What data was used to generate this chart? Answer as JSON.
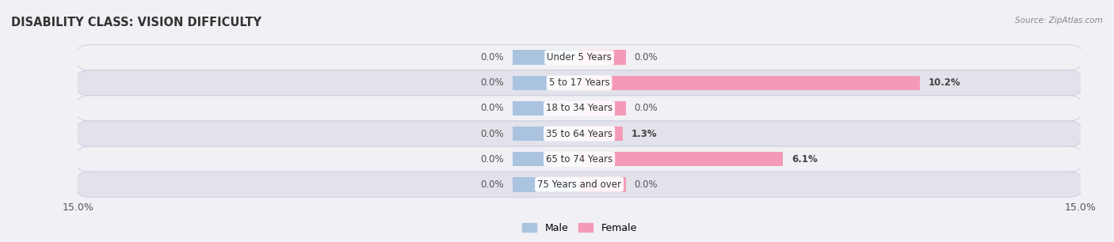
{
  "title": "DISABILITY CLASS: VISION DIFFICULTY",
  "source": "Source: ZipAtlas.com",
  "categories": [
    "Under 5 Years",
    "5 to 17 Years",
    "18 to 34 Years",
    "35 to 64 Years",
    "65 to 74 Years",
    "75 Years and over"
  ],
  "male_values": [
    0.0,
    0.0,
    0.0,
    0.0,
    0.0,
    0.0
  ],
  "female_values": [
    0.0,
    10.2,
    0.0,
    1.3,
    6.1,
    0.0
  ],
  "male_color": "#aac4e0",
  "female_color": "#f49ab8",
  "xlim": 15.0,
  "bar_height": 0.58,
  "stub_size": 2.0,
  "title_fontsize": 10.5,
  "label_fontsize": 8.5,
  "tick_fontsize": 9,
  "legend_fontsize": 9,
  "row_bg_light": "#f0f0f5",
  "row_bg_dark": "#e2e2eb",
  "row_outline": "#ccccdd",
  "fig_bg": "#f0f0f5"
}
